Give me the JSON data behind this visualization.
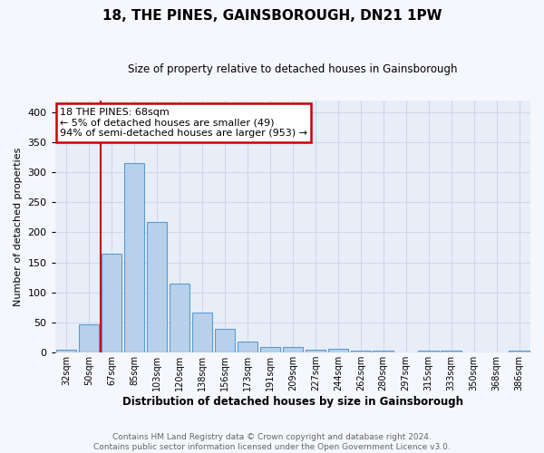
{
  "title": "18, THE PINES, GAINSBOROUGH, DN21 1PW",
  "subtitle": "Size of property relative to detached houses in Gainsborough",
  "xlabel": "Distribution of detached houses by size in Gainsborough",
  "ylabel": "Number of detached properties",
  "categories": [
    "32sqm",
    "50sqm",
    "67sqm",
    "85sqm",
    "103sqm",
    "120sqm",
    "138sqm",
    "156sqm",
    "173sqm",
    "191sqm",
    "209sqm",
    "227sqm",
    "244sqm",
    "262sqm",
    "280sqm",
    "297sqm",
    "315sqm",
    "333sqm",
    "350sqm",
    "368sqm",
    "386sqm"
  ],
  "values": [
    5,
    47,
    165,
    315,
    218,
    115,
    66,
    40,
    18,
    10,
    10,
    5,
    6,
    3,
    3,
    0,
    3,
    3,
    0,
    0,
    4
  ],
  "bar_color": "#b8d0ea",
  "bar_edge_color": "#5b9bd5",
  "background_color": "#e8eef8",
  "grid_color": "#d0d8e8",
  "fig_background": "#f5f7fc",
  "annotation_text": "18 THE PINES: 68sqm\n← 5% of detached houses are smaller (49)\n94% of semi-detached houses are larger (953) →",
  "annotation_box_color": "#ffffff",
  "annotation_box_edge": "#cc0000",
  "red_line_x": 1.5,
  "ylim": [
    0,
    420
  ],
  "yticks": [
    0,
    50,
    100,
    150,
    200,
    250,
    300,
    350,
    400
  ],
  "footer1": "Contains HM Land Registry data © Crown copyright and database right 2024.",
  "footer2": "Contains public sector information licensed under the Open Government Licence v3.0."
}
